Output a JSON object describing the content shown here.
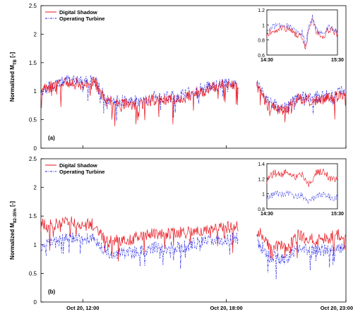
{
  "colors": {
    "shadow": "#e8141d",
    "turbine": "#1f1fe8",
    "axis": "#000000",
    "background": "#ffffff"
  },
  "chart_data": [
    {
      "type": "line",
      "panel_label": "(a)",
      "ylabel": "Normalized M",
      "ylabel_sub": "TB",
      "ylabel_unit": " [-]",
      "ylim": [
        0,
        2.5
      ],
      "yticks": [
        "0",
        "0.5",
        "1",
        "1.5",
        "2",
        "2.5"
      ],
      "ytick_values": [
        0,
        0.5,
        1,
        1.5,
        2,
        2.5
      ],
      "x_range_hours": [
        10.25,
        23.0
      ],
      "gap_hours": [
        18.5,
        19.25
      ],
      "legend": {
        "position": "top-left",
        "entries": [
          "Digital Shadow",
          "Operating Turbine"
        ]
      },
      "series": [
        {
          "name": "Digital Shadow",
          "color": "#e8141d",
          "style": "solid",
          "profile": [
            [
              10.25,
              1.05
            ],
            [
              11.0,
              1.1
            ],
            [
              11.5,
              1.15
            ],
            [
              12.0,
              1.1
            ],
            [
              12.5,
              1.15
            ],
            [
              13.0,
              0.8
            ],
            [
              14.0,
              0.75
            ],
            [
              15.0,
              0.85
            ],
            [
              16.0,
              0.85
            ],
            [
              17.0,
              1.0
            ],
            [
              18.0,
              1.12
            ],
            [
              18.5,
              1.1
            ],
            [
              19.25,
              1.15
            ],
            [
              19.75,
              0.75
            ],
            [
              20.5,
              0.65
            ],
            [
              21.0,
              0.85
            ],
            [
              22.0,
              0.85
            ],
            [
              23.0,
              0.95
            ]
          ]
        },
        {
          "name": "Operating Turbine",
          "color": "#1f1fe8",
          "style": "dashdot",
          "profile": [
            [
              10.25,
              1.0
            ],
            [
              11.0,
              1.15
            ],
            [
              11.5,
              1.2
            ],
            [
              12.0,
              1.15
            ],
            [
              12.5,
              1.2
            ],
            [
              13.0,
              0.85
            ],
            [
              14.0,
              0.8
            ],
            [
              15.0,
              0.9
            ],
            [
              16.0,
              0.9
            ],
            [
              17.0,
              1.05
            ],
            [
              18.0,
              1.15
            ],
            [
              18.5,
              1.15
            ],
            [
              19.25,
              1.2
            ],
            [
              19.75,
              0.8
            ],
            [
              20.5,
              0.7
            ],
            [
              21.0,
              0.9
            ],
            [
              22.0,
              0.9
            ],
            [
              23.0,
              1.0
            ]
          ]
        }
      ],
      "inset": {
        "ylim": [
          0.6,
          1.2
        ],
        "yticks": [
          "0.6",
          "0.8",
          "1",
          "1.2"
        ],
        "ytick_values": [
          0.6,
          0.8,
          1.0,
          1.2
        ],
        "xticks": [
          "14:30",
          "15:30"
        ],
        "series_profile": {
          "Digital Shadow": [
            [
              0,
              0.88
            ],
            [
              0.1,
              0.93
            ],
            [
              0.2,
              0.97
            ],
            [
              0.3,
              0.95
            ],
            [
              0.4,
              0.88
            ],
            [
              0.5,
              0.85
            ],
            [
              0.55,
              0.68
            ],
            [
              0.6,
              0.98
            ],
            [
              0.65,
              1.08
            ],
            [
              0.7,
              0.92
            ],
            [
              0.8,
              0.82
            ],
            [
              0.85,
              0.92
            ],
            [
              0.9,
              0.95
            ],
            [
              1.0,
              0.88
            ]
          ],
          "Operating Turbine": [
            [
              0,
              0.92
            ],
            [
              0.1,
              0.98
            ],
            [
              0.2,
              1.0
            ],
            [
              0.3,
              0.98
            ],
            [
              0.4,
              0.92
            ],
            [
              0.5,
              0.9
            ],
            [
              0.55,
              0.72
            ],
            [
              0.6,
              1.02
            ],
            [
              0.65,
              1.1
            ],
            [
              0.7,
              0.95
            ],
            [
              0.8,
              0.86
            ],
            [
              0.85,
              0.95
            ],
            [
              0.9,
              0.98
            ],
            [
              1.0,
              0.92
            ]
          ]
        }
      }
    },
    {
      "type": "line",
      "panel_label": "(b)",
      "ylabel": "Normalized M",
      "ylabel_sub": "82-35%",
      "ylabel_unit": " [-]",
      "ylim": [
        0,
        2.5
      ],
      "yticks": [
        "0",
        "0.5",
        "1",
        "1.5",
        "2",
        "2.5"
      ],
      "ytick_values": [
        0,
        0.5,
        1,
        1.5,
        2,
        2.5
      ],
      "x_range_hours": [
        10.25,
        23.0
      ],
      "gap_hours": [
        18.5,
        19.25
      ],
      "xticks": [
        "Oct 20, 12:00",
        "Oct 20, 18:00",
        "Oct 20, 23:00"
      ],
      "xtick_hours": [
        12,
        18,
        23
      ],
      "legend": {
        "position": "top-left",
        "entries": [
          "Digital Shadow",
          "Operating Turbine"
        ]
      },
      "series": [
        {
          "name": "Digital Shadow",
          "color": "#e8141d",
          "style": "solid",
          "profile": [
            [
              10.25,
              1.35
            ],
            [
              11.0,
              1.35
            ],
            [
              11.5,
              1.4
            ],
            [
              12.0,
              1.35
            ],
            [
              12.5,
              1.35
            ],
            [
              13.0,
              1.05
            ],
            [
              14.0,
              1.1
            ],
            [
              15.0,
              1.2
            ],
            [
              16.0,
              1.2
            ],
            [
              17.0,
              1.25
            ],
            [
              18.0,
              1.3
            ],
            [
              18.5,
              1.3
            ],
            [
              19.25,
              1.3
            ],
            [
              19.75,
              1.0
            ],
            [
              20.5,
              0.95
            ],
            [
              21.0,
              1.15
            ],
            [
              22.0,
              1.1
            ],
            [
              23.0,
              1.2
            ]
          ]
        },
        {
          "name": "Operating Turbine",
          "color": "#1f1fe8",
          "style": "dashdot",
          "profile": [
            [
              10.25,
              1.0
            ],
            [
              11.0,
              1.05
            ],
            [
              11.5,
              1.15
            ],
            [
              12.0,
              1.1
            ],
            [
              12.5,
              1.1
            ],
            [
              13.0,
              0.85
            ],
            [
              14.0,
              0.85
            ],
            [
              15.0,
              0.95
            ],
            [
              16.0,
              0.95
            ],
            [
              17.0,
              1.05
            ],
            [
              18.0,
              1.1
            ],
            [
              18.5,
              1.1
            ],
            [
              19.25,
              1.1
            ],
            [
              19.75,
              0.8
            ],
            [
              20.5,
              0.75
            ],
            [
              21.0,
              0.95
            ],
            [
              22.0,
              0.9
            ],
            [
              23.0,
              0.95
            ]
          ]
        }
      ],
      "inset": {
        "ylim": [
          0.8,
          1.4
        ],
        "yticks": [
          "0.8",
          "1",
          "1.2",
          "1.4"
        ],
        "ytick_values": [
          0.8,
          1.0,
          1.2,
          1.4
        ],
        "xticks": [
          "14:30",
          "15:30"
        ],
        "series_profile": {
          "Digital Shadow": [
            [
              0,
              1.18
            ],
            [
              0.1,
              1.28
            ],
            [
              0.2,
              1.25
            ],
            [
              0.3,
              1.3
            ],
            [
              0.4,
              1.22
            ],
            [
              0.5,
              1.25
            ],
            [
              0.6,
              1.12
            ],
            [
              0.7,
              1.28
            ],
            [
              0.8,
              1.3
            ],
            [
              0.9,
              1.2
            ],
            [
              1.0,
              1.18
            ]
          ],
          "Operating Turbine": [
            [
              0,
              0.95
            ],
            [
              0.1,
              1.0
            ],
            [
              0.2,
              0.98
            ],
            [
              0.3,
              1.02
            ],
            [
              0.4,
              0.96
            ],
            [
              0.5,
              0.98
            ],
            [
              0.6,
              0.9
            ],
            [
              0.7,
              0.98
            ],
            [
              0.8,
              1.0
            ],
            [
              0.9,
              0.95
            ],
            [
              1.0,
              0.95
            ]
          ]
        }
      }
    }
  ]
}
